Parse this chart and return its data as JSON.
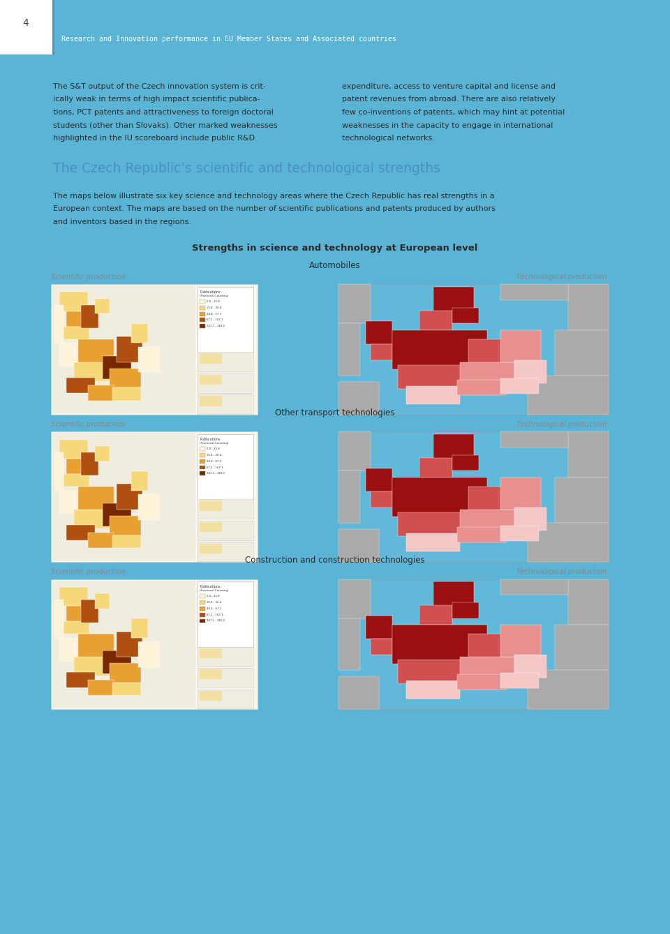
{
  "page_bg": "#5ab4d6",
  "content_bg": "#ffffff",
  "page_number": "4",
  "header_text": "Research and Innovation performance in EU Member States and Associated countries",
  "body_text_left": "The S&T output of the Czech innovation system is crit-\nically weak in terms of high impact scientific publica-\ntions, PCT patents and attractiveness to foreign doctoral\nstudents (other than Slovaks). Other marked weaknesses\nhighlighted in the IU scoreboard include public R&D",
  "body_text_right": "expenditure, access to venture capital and license and\npatent revenues from abroad. There are also relatively\nfew co-inventions of patents, which may hint at potential\nweaknesses in the capacity to engage in international\ntechnological networks.",
  "section_title": "The Czech Republic’s scientific and technological strengths",
  "section_title_color": "#4a90c4",
  "body_text2_lines": [
    "The maps below illustrate six key science and technology areas where the Czech Republic has real strengths in a",
    "European context. The maps are based on the number of scientific publications and patents produced by authors",
    "and inventors based in the regions."
  ],
  "chart_title": "Strengths in science and technology at European level",
  "map_sections": [
    "Automobiles",
    "Other transport technologies",
    "Construction and construction technologies"
  ],
  "sci_label": "Scientific production",
  "tech_label": "Technological production",
  "map_sci_colors": [
    "#fdf3d9",
    "#f5d87a",
    "#e8a030",
    "#b05010",
    "#7a2800"
  ],
  "map_tech_bg": "#62b8d8",
  "map_tech_grey": "#aaaaaa",
  "map_tech_colors": [
    "#f5c8c8",
    "#e89090",
    "#d05050",
    "#9a1010"
  ],
  "text_color": "#2a2a2a",
  "grey_text": "#888888",
  "body_fontsize": 8.0,
  "section_title_fontsize": 13.5,
  "chart_title_fontsize": 9.5,
  "label_fontsize": 8.5,
  "italic_fontsize": 7.5
}
